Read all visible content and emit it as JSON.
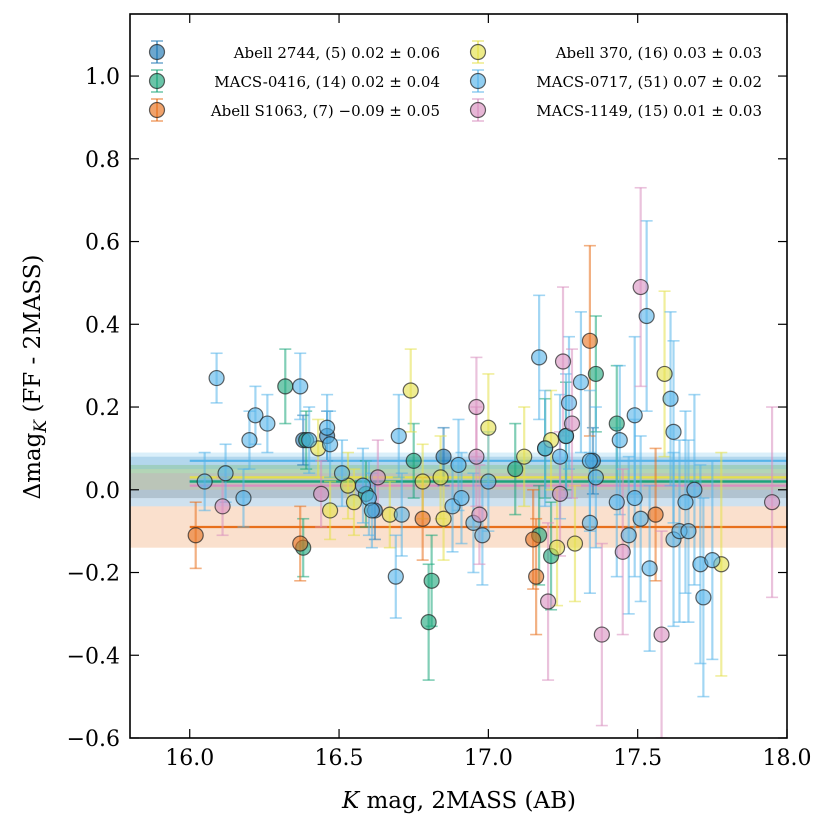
{
  "chart_data": {
    "type": "scatter",
    "xlabel": "K mag, 2MASS (AB)",
    "xlabel_italic_part": "K",
    "xlabel_rest": " mag, 2MASS (AB)",
    "ylabel": "Δmag_K (FF - 2MASS)",
    "ylabel_main": "Δmag",
    "ylabel_sub": "K",
    "ylabel_rest": " (FF - 2MASS)",
    "xlim": [
      15.8,
      18.0
    ],
    "ylim": [
      -0.6,
      1.15
    ],
    "xticks": [
      16.0,
      16.5,
      17.0,
      17.5,
      18.0
    ],
    "xtick_labels": [
      "16.0",
      "16.5",
      "17.0",
      "17.5",
      "18.0"
    ],
    "yticks": [
      -0.6,
      -0.4,
      -0.2,
      0.0,
      0.2,
      0.4,
      0.6,
      0.8,
      1.0
    ],
    "ytick_labels": [
      "−0.6",
      "−0.4",
      "−0.2",
      "0.0",
      "0.2",
      "0.4",
      "0.6",
      "0.8",
      "1.0"
    ],
    "legend_position": "top",
    "legend_columns": 2,
    "series": [
      {
        "name": "Abell 2744",
        "legend": "Abell 2744, (5) 0.02 ± 0.06",
        "color": "#1f78b4",
        "count": 5,
        "mean": 0.02,
        "err": 0.06,
        "points": [
          [
            16.38,
            0.12,
            0.06
          ],
          [
            16.46,
            0.13,
            0.06
          ],
          [
            16.62,
            -0.05,
            0.07
          ],
          [
            16.85,
            0.08,
            0.07
          ],
          [
            17.35,
            0.07,
            0.08
          ]
        ]
      },
      {
        "name": "MACS-0416",
        "legend": "MACS-0416, (14) 0.02 ± 0.04",
        "color": "#1aa57a",
        "count": 14,
        "mean": 0.02,
        "err": 0.04,
        "points": [
          [
            16.32,
            0.25,
            0.09
          ],
          [
            16.38,
            -0.14,
            0.07
          ],
          [
            16.39,
            0.12,
            0.07
          ],
          [
            16.59,
            -0.01,
            0.08
          ],
          [
            16.75,
            0.07,
            0.09
          ],
          [
            16.8,
            -0.32,
            0.14
          ],
          [
            16.81,
            -0.22,
            0.11
          ],
          [
            17.09,
            0.05,
            0.11
          ],
          [
            17.17,
            -0.11,
            0.12
          ],
          [
            17.19,
            0.1,
            0.12
          ],
          [
            17.21,
            -0.16,
            0.13
          ],
          [
            17.26,
            0.13,
            0.13
          ],
          [
            17.36,
            0.28,
            0.14
          ],
          [
            17.43,
            0.16,
            0.14
          ]
        ]
      },
      {
        "name": "Abell S1063",
        "legend": "Abell S1063, (7) −0.09 ± 0.05",
        "color": "#e8701c",
        "count": 7,
        "mean": -0.09,
        "err": 0.05,
        "points": [
          [
            16.02,
            -0.11,
            0.08
          ],
          [
            16.37,
            -0.13,
            0.09
          ],
          [
            16.78,
            -0.07,
            0.1
          ],
          [
            17.15,
            -0.12,
            0.12
          ],
          [
            17.16,
            -0.21,
            0.14
          ],
          [
            17.34,
            0.36,
            0.23
          ],
          [
            17.56,
            -0.06,
            0.16
          ]
        ]
      },
      {
        "name": "Abell 370",
        "legend": "Abell 370, (16) 0.03 ± 0.03",
        "color": "#e4e04a",
        "count": 16,
        "mean": 0.03,
        "err": 0.03,
        "points": [
          [
            16.43,
            0.1,
            0.07
          ],
          [
            16.47,
            -0.05,
            0.07
          ],
          [
            16.53,
            0.01,
            0.08
          ],
          [
            16.55,
            -0.03,
            0.08
          ],
          [
            16.67,
            -0.06,
            0.08
          ],
          [
            16.74,
            0.24,
            0.1
          ],
          [
            16.78,
            0.02,
            0.09
          ],
          [
            16.84,
            0.03,
            0.1
          ],
          [
            16.85,
            -0.07,
            0.1
          ],
          [
            17.0,
            0.15,
            0.13
          ],
          [
            17.12,
            0.08,
            0.12
          ],
          [
            17.21,
            0.12,
            0.12
          ],
          [
            17.23,
            -0.14,
            0.14
          ],
          [
            17.29,
            -0.13,
            0.14
          ],
          [
            17.59,
            0.28,
            0.2
          ],
          [
            17.78,
            -0.18,
            0.27
          ]
        ]
      },
      {
        "name": "MACS-0717",
        "legend": "MACS-0717, (51) 0.07 ± 0.02",
        "color": "#56b4e9",
        "count": 51,
        "mean": 0.07,
        "err": 0.02,
        "points": [
          [
            16.09,
            0.27,
            0.06
          ],
          [
            16.18,
            -0.02,
            0.07
          ],
          [
            16.2,
            0.12,
            0.07
          ],
          [
            16.22,
            0.18,
            0.07
          ],
          [
            16.26,
            0.16,
            0.07
          ],
          [
            16.37,
            0.25,
            0.08
          ],
          [
            16.4,
            0.12,
            0.08
          ],
          [
            16.46,
            0.15,
            0.08
          ],
          [
            16.47,
            0.11,
            0.08
          ],
          [
            16.58,
            0.01,
            0.09
          ],
          [
            16.6,
            -0.02,
            0.09
          ],
          [
            16.61,
            -0.05,
            0.09
          ],
          [
            16.69,
            -0.21,
            0.1
          ],
          [
            16.7,
            0.13,
            0.1
          ],
          [
            16.71,
            -0.06,
            0.1
          ],
          [
            16.88,
            -0.04,
            0.11
          ],
          [
            16.9,
            0.06,
            0.11
          ],
          [
            16.95,
            -0.08,
            0.12
          ],
          [
            16.98,
            -0.11,
            0.12
          ],
          [
            17.0,
            0.02,
            0.12
          ],
          [
            17.17,
            0.32,
            0.15
          ],
          [
            17.19,
            0.1,
            0.14
          ],
          [
            17.24,
            0.08,
            0.15
          ],
          [
            17.26,
            0.13,
            0.15
          ],
          [
            17.27,
            0.21,
            0.16
          ],
          [
            17.31,
            0.26,
            0.17
          ],
          [
            17.34,
            0.07,
            0.17
          ],
          [
            17.34,
            -0.08,
            0.17
          ],
          [
            17.36,
            0.03,
            0.17
          ],
          [
            17.43,
            -0.03,
            0.18
          ],
          [
            17.44,
            0.12,
            0.18
          ],
          [
            17.47,
            -0.11,
            0.19
          ],
          [
            17.49,
            0.18,
            0.19
          ],
          [
            17.49,
            -0.02,
            0.19
          ],
          [
            17.51,
            -0.07,
            0.2
          ],
          [
            17.53,
            0.42,
            0.23
          ],
          [
            17.54,
            -0.19,
            0.2
          ],
          [
            17.61,
            0.22,
            0.21
          ],
          [
            17.62,
            0.14,
            0.22
          ],
          [
            17.62,
            -0.12,
            0.21
          ],
          [
            17.64,
            -0.1,
            0.22
          ],
          [
            17.66,
            -0.03,
            0.22
          ],
          [
            17.67,
            -0.1,
            0.22
          ],
          [
            17.69,
            0.0,
            0.23
          ],
          [
            17.71,
            -0.18,
            0.24
          ],
          [
            17.72,
            -0.26,
            0.24
          ],
          [
            17.75,
            -0.17,
            0.24
          ],
          [
            16.05,
            0.02,
            0.07
          ],
          [
            16.12,
            0.04,
            0.07
          ],
          [
            16.51,
            0.04,
            0.08
          ],
          [
            16.91,
            -0.02,
            0.11
          ]
        ]
      },
      {
        "name": "MACS-1149",
        "legend": "MACS-1149, (15) 0.01 ± 0.03",
        "color": "#d98fbf",
        "count": 15,
        "mean": 0.01,
        "err": 0.03,
        "points": [
          [
            16.11,
            -0.04,
            0.07
          ],
          [
            16.44,
            -0.01,
            0.08
          ],
          [
            16.63,
            0.03,
            0.09
          ],
          [
            16.96,
            0.2,
            0.12
          ],
          [
            16.96,
            0.08,
            0.12
          ],
          [
            16.97,
            -0.06,
            0.12
          ],
          [
            17.2,
            -0.27,
            0.19
          ],
          [
            17.24,
            -0.01,
            0.15
          ],
          [
            17.25,
            0.31,
            0.18
          ],
          [
            17.28,
            0.16,
            0.18
          ],
          [
            17.38,
            -0.35,
            0.22
          ],
          [
            17.45,
            -0.15,
            0.2
          ],
          [
            17.51,
            0.49,
            0.24
          ],
          [
            17.58,
            -0.35,
            0.25
          ],
          [
            17.95,
            -0.03,
            0.23
          ]
        ]
      }
    ]
  }
}
